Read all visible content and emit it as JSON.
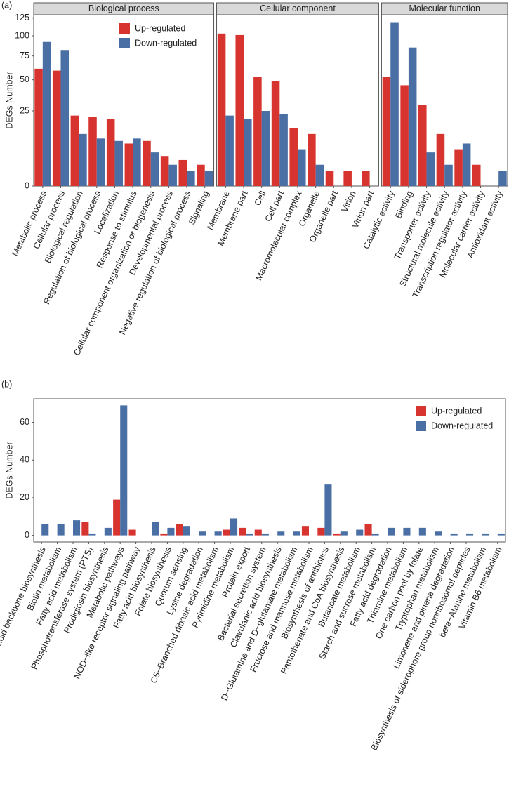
{
  "chart_data": [
    {
      "type": "facet_bar",
      "panel_label": "(a)",
      "y_label": "DEGs Number",
      "y_scale": "sqrt",
      "ylim": [
        0,
        130
      ],
      "yticks": [
        0,
        25,
        50,
        75,
        100,
        125
      ],
      "series": [
        {
          "name": "Up-regulated",
          "color": "#d7342f"
        },
        {
          "name": "Down-regulated",
          "color": "#4a6fa5"
        }
      ],
      "legend": "top-left",
      "facets": [
        {
          "title": "Biological process",
          "categories": [
            "Metabolic process",
            "Cellular process",
            "Biological regulation",
            "Regulation of biological process",
            "Localization",
            "Response to stimulus",
            "Cellular component organization or biogenesis",
            "Developmental process",
            "Negative regulation of biological process",
            "Signaling"
          ],
          "values": [
            [
              61,
              59,
              22,
              21,
              20,
              8,
              9,
              4,
              3,
              2
            ],
            [
              92,
              82,
              12,
              10,
              9,
              10,
              5,
              2,
              1,
              1
            ]
          ]
        },
        {
          "title": "Cellular component",
          "categories": [
            "Membrane",
            "Membrane part",
            "Cell",
            "Cell part",
            "Macromolecular complex",
            "Organelle",
            "Organelle part",
            "Virion",
            "Virion part"
          ],
          "values": [
            [
              103,
              101,
              53,
              49,
              15,
              12,
              1,
              1,
              1
            ],
            [
              22,
              20,
              25,
              23,
              6,
              2,
              0,
              0,
              0
            ]
          ]
        },
        {
          "title": "Molecular function",
          "categories": [
            "Catalytic activity",
            "Binding",
            "Transporter activity",
            "Structural molecule activity",
            "Transcription regulator activity",
            "Molecular carrier activity",
            "Antioxidant activity"
          ],
          "values": [
            [
              53,
              45,
              29,
              12,
              6,
              2,
              0
            ],
            [
              118,
              85,
              5,
              2,
              8,
              0,
              1
            ]
          ]
        }
      ]
    },
    {
      "type": "bar",
      "panel_label": "(b)",
      "y_label": "DEGs Number",
      "ylim": [
        -3.5,
        72.5
      ],
      "yticks": [
        0,
        20,
        40,
        60
      ],
      "legend": "top-right",
      "categories": [
        "Terpenoid backbone biosynthesis",
        "Biotin metabolism",
        "Fatty acid metabolism",
        "Phosphotransferase system (PTS)",
        "Prodigiosin biosynthesis",
        "Metabolic pathways",
        "NOD−like receptor signaling pathway",
        "Fatty acid biosynthesis",
        "Folate biosynthesis",
        "Quorum sensing",
        "Lysine degradation",
        "C5−Branched dibasic acid metabolism",
        "Pyrimidine metabolism",
        "Protein export",
        "Bacterial secretion system",
        "Clavulanic acid biosynthesis",
        "D−Glutamine and D−glutamate metabolism",
        "Fructose and mannose metabolism",
        "Biosynthesis of antibiotics",
        "Pantothenate and CoA biosynthesis",
        "Butanoate metabolism",
        "Starch and sucrose metabolism",
        "Fatty acid degradation",
        "Thiamine metabolism",
        "One carbon pool by folate",
        "Tryptophan metabolism",
        "Limonene and pinene degradation",
        "Biosynthesis of siderophore group nonribosomal peptides",
        "beta−Alanine metabolism",
        "Vitamin B6 metabolism"
      ],
      "series": [
        {
          "name": "Up-regulated",
          "color": "#d7342f",
          "values": [
            0,
            0,
            0,
            7,
            0,
            19,
            3,
            0,
            1,
            6,
            0,
            0,
            3,
            4,
            3,
            0,
            0,
            5,
            4,
            1,
            0,
            6,
            0,
            0,
            0,
            0,
            0,
            0,
            0,
            0
          ]
        },
        {
          "name": "Down-regulated",
          "color": "#4a6fa5",
          "values": [
            6,
            6,
            8,
            1,
            4,
            69,
            0,
            7,
            4,
            5,
            2,
            2,
            9,
            1,
            1,
            2,
            2,
            0,
            27,
            2,
            3,
            1,
            4,
            4,
            4,
            2,
            1,
            1,
            1,
            1
          ]
        }
      ]
    }
  ]
}
